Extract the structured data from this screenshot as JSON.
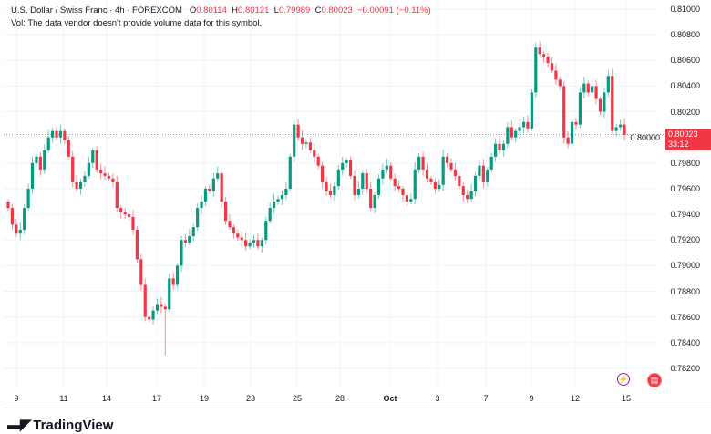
{
  "header": {
    "title": "U.S. Dollar / Swiss Franc · 4h · FOREXCOM",
    "o_label": "O",
    "o": "0.80114",
    "h_label": "H",
    "h": "0.80121",
    "l_label": "L",
    "l": "0.79989",
    "c_label": "C",
    "c": "0.80023",
    "change": "−0.00091 (−0.11%)",
    "vol_note": "Vol: The data vendor doesn't provide volume data for this symbol."
  },
  "price_label": {
    "value": "0.80023",
    "countdown": "33:12"
  },
  "brand": "TradingView",
  "colors": {
    "up": "#089981",
    "down": "#f23645",
    "grid": "#f0f3fa"
  },
  "chart_data": {
    "type": "candlestick",
    "title": "U.S. Dollar / Swiss Franc · 4h · FOREXCOM",
    "ylim": [
      0.781,
      0.8105
    ],
    "y_ticks": [
      "0.81000",
      "0.80800",
      "0.80600",
      "0.80400",
      "0.80200",
      "0.80000",
      "0.79800",
      "0.79600",
      "0.79400",
      "0.79200",
      "0.79000",
      "0.78800",
      "0.78600",
      "0.78400",
      "0.78200"
    ],
    "x_ticks": [
      "9",
      "11",
      "14",
      "17",
      "19",
      "23",
      "25",
      "28",
      "Oct",
      "3",
      "7",
      "9",
      "12",
      "15"
    ],
    "last_price": 0.80023,
    "open_first": 0.795,
    "closes": [
      0.7945,
      0.7932,
      0.7925,
      0.7928,
      0.7945,
      0.796,
      0.798,
      0.7985,
      0.7975,
      0.799,
      0.8,
      0.8005,
      0.8,
      0.8005,
      0.7998,
      0.7985,
      0.7965,
      0.796,
      0.7965,
      0.797,
      0.798,
      0.799,
      0.7975,
      0.7972,
      0.797,
      0.7968,
      0.7965,
      0.7945,
      0.7942,
      0.794,
      0.7938,
      0.7928,
      0.7905,
      0.7885,
      0.786,
      0.7858,
      0.7865,
      0.787,
      0.7868,
      0.7866,
      0.789,
      0.7885,
      0.79,
      0.792,
      0.7918,
      0.7923,
      0.793,
      0.7945,
      0.795,
      0.796,
      0.7958,
      0.7968,
      0.7972,
      0.795,
      0.7935,
      0.793,
      0.7925,
      0.7922,
      0.792,
      0.7915,
      0.7918,
      0.792,
      0.7915,
      0.792,
      0.7935,
      0.7945,
      0.795,
      0.7952,
      0.7955,
      0.796,
      0.7985,
      0.801,
      0.8,
      0.7995,
      0.7996,
      0.799,
      0.7985,
      0.7978,
      0.7965,
      0.7958,
      0.7955,
      0.7962,
      0.7975,
      0.798,
      0.7982,
      0.797,
      0.7955,
      0.796,
      0.7972,
      0.796,
      0.7945,
      0.7955,
      0.7968,
      0.7975,
      0.7978,
      0.7968,
      0.7962,
      0.796,
      0.7955,
      0.795,
      0.7952,
      0.7975,
      0.7985,
      0.7975,
      0.7968,
      0.7965,
      0.796,
      0.7963,
      0.7985,
      0.798,
      0.7975,
      0.797,
      0.7962,
      0.7955,
      0.7952,
      0.7958,
      0.797,
      0.7978,
      0.7965,
      0.7975,
      0.7985,
      0.7995,
      0.799,
      0.7995,
      0.8008,
      0.8,
      0.8005,
      0.8008,
      0.8012,
      0.8007,
      0.8035,
      0.807,
      0.8065,
      0.8063,
      0.8058,
      0.8052,
      0.8045,
      0.804,
      0.8,
      0.7995,
      0.8012,
      0.801,
      0.8035,
      0.8042,
      0.8035,
      0.804,
      0.803,
      0.802,
      0.8035,
      0.8048,
      0.8005,
      0.8008,
      0.801,
      0.8002
    ],
    "grid": true
  }
}
